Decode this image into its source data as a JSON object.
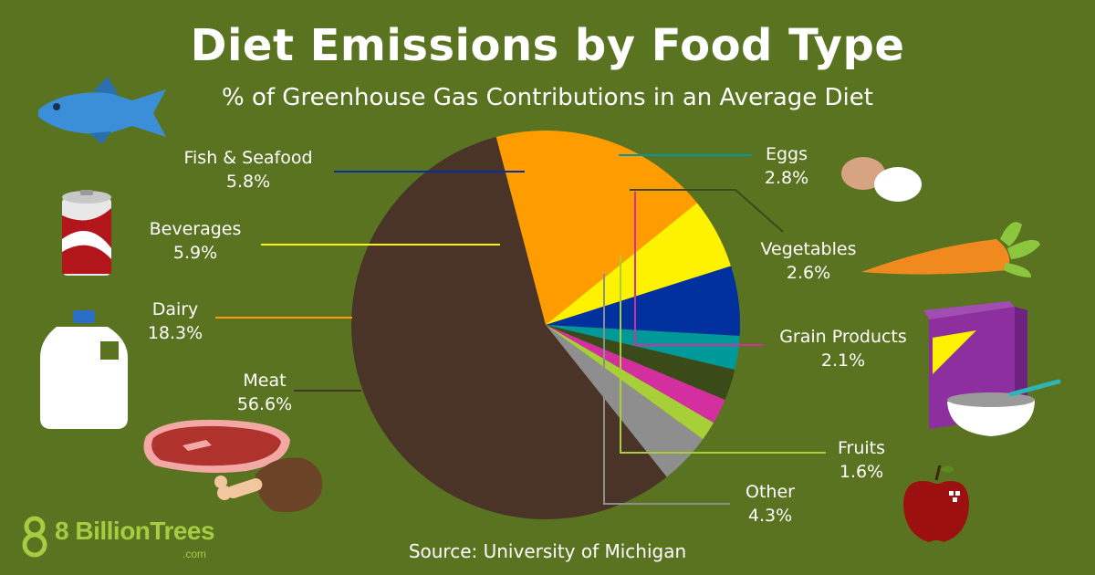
{
  "header": {
    "title": "Diet Emissions by Food Type",
    "subtitle": "% of Greenhouse Gas Contributions in an Average Diet"
  },
  "source": "Source: University of Michigan",
  "brand": {
    "name": "8 BillionTrees",
    "suffix": ".com"
  },
  "colors": {
    "background": "#5a7320",
    "Meat": "#4a3428",
    "Dairy": "#ff9c00",
    "Beverages": "#fff200",
    "Fish & Seafood": "#00319f",
    "Eggs": "#00999a",
    "Vegetables": "#3a4a18",
    "Grain Products": "#d42f9e",
    "Fruits": "#a9cf38",
    "Other": "#8e8e8e"
  },
  "chart_data": {
    "type": "pie",
    "title": "Diet Emissions by Food Type",
    "subtitle": "% of Greenhouse Gas Contributions in an Average Diet",
    "unit": "%",
    "slices": [
      {
        "label": "Meat",
        "value": 56.6,
        "display": "56.6%"
      },
      {
        "label": "Dairy",
        "value": 18.3,
        "display": "18.3%"
      },
      {
        "label": "Beverages",
        "value": 5.9,
        "display": "5.9%"
      },
      {
        "label": "Fish & Seafood",
        "value": 5.8,
        "display": "5.8%"
      },
      {
        "label": "Eggs",
        "value": 2.8,
        "display": "2.8%"
      },
      {
        "label": "Vegetables",
        "value": 2.6,
        "display": "2.6%"
      },
      {
        "label": "Grain Products",
        "value": 2.1,
        "display": "2.1%"
      },
      {
        "label": "Fruits",
        "value": 1.6,
        "display": "1.6%"
      },
      {
        "label": "Other",
        "value": 4.3,
        "display": "4.3%"
      }
    ]
  }
}
